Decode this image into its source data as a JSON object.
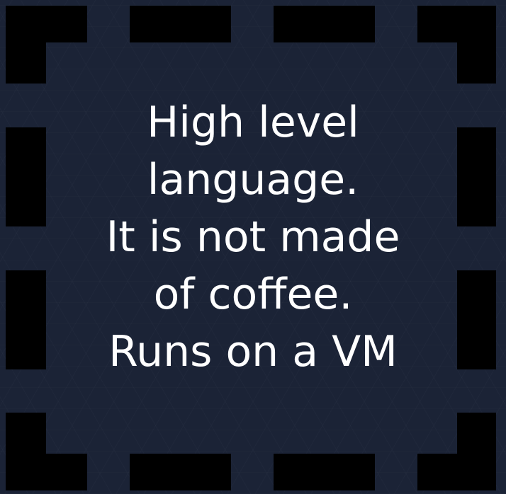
{
  "card": {
    "lines": [
      "High level",
      "language.",
      "It is not made",
      "of coffee.",
      "Runs on a VM"
    ]
  },
  "colors": {
    "background": "#1b2336",
    "frame": "#000000",
    "text": "#ffffff"
  }
}
